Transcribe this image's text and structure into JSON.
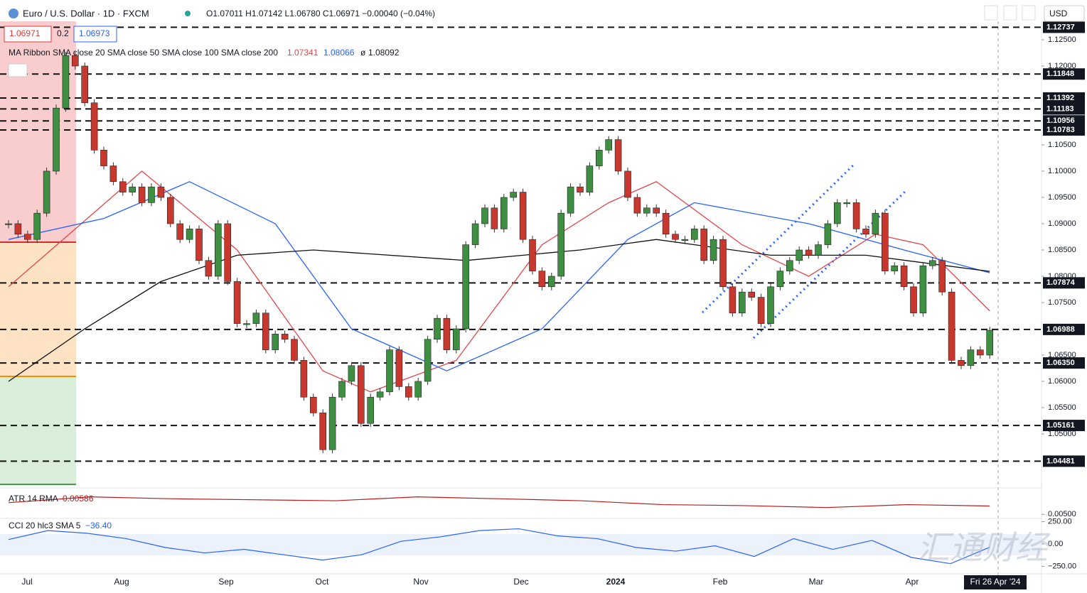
{
  "header": {
    "title": "Euro / U.S. Dollar · 1D · FXCM",
    "ohlc": "O1.07011 H1.07142 L1.06780 C1.06971 −0.00040 (−0.04%)",
    "bid": "1.06971",
    "spread": "0.2",
    "ask": "1.06973",
    "currency": "USD",
    "ma_label": "MA Ribbon SMA close 20 SMA close 50 SMA close 100 SMA close 200",
    "ma20": "1.07341",
    "ma50": "1.08066",
    "ma100": "ø",
    "ma200": "1.08092",
    "atr_label": "ATR 14 RMA",
    "atr_value": "0.00586",
    "cci_label": "CCI 20 hlc3 SMA 5",
    "cci_value": "−36.40",
    "date_badge": "Fri 26 Apr '24",
    "watermark": "汇通财经"
  },
  "chart_data": {
    "type": "candlestick",
    "up_color": "#3f8f43",
    "down_color": "#c9382e",
    "closes": [
      1.09,
      1.088,
      1.087,
      1.092,
      1.1,
      1.112,
      1.122,
      1.12,
      1.113,
      1.104,
      1.101,
      1.098,
      1.096,
      1.097,
      1.094,
      1.097,
      1.095,
      1.09,
      1.087,
      1.089,
      1.083,
      1.08,
      1.09,
      1.079,
      1.071,
      1.071,
      1.073,
      1.066,
      1.069,
      1.068,
      1.064,
      1.057,
      1.054,
      1.047,
      1.057,
      1.06,
      1.063,
      1.052,
      1.057,
      1.058,
      1.066,
      1.059,
      1.057,
      1.06,
      1.068,
      1.072,
      1.066,
      1.07,
      1.086,
      1.09,
      1.093,
      1.089,
      1.095,
      1.096,
      1.087,
      1.081,
      1.078,
      1.08,
      1.092,
      1.097,
      1.096,
      1.101,
      1.104,
      1.106,
      1.1,
      1.095,
      1.092,
      1.093,
      1.092,
      1.088,
      1.087,
      1.087,
      1.089,
      1.083,
      1.087,
      1.078,
      1.073,
      1.077,
      1.076,
      1.071,
      1.078,
      1.081,
      1.083,
      1.085,
      1.084,
      1.086,
      1.09,
      1.094,
      1.094,
      1.089,
      1.088,
      1.092,
      1.081,
      1.082,
      1.078,
      1.073,
      1.082,
      1.083,
      1.077,
      1.064,
      1.063,
      1.066,
      1.065,
      1.06971
    ],
    "ylim": [
      1.04,
      1.12851
    ],
    "yticks": [
      {
        "value": 1.125,
        "label": "1.12500"
      },
      {
        "value": 1.12,
        "label": "1.12000"
      },
      {
        "value": 1.105,
        "label": "1.10500"
      },
      {
        "value": 1.1,
        "label": "1.10000"
      },
      {
        "value": 1.095,
        "label": "1.09500"
      },
      {
        "value": 1.09,
        "label": "1.09000"
      },
      {
        "value": 1.085,
        "label": "1.08500"
      },
      {
        "value": 1.08,
        "label": "1.08000"
      },
      {
        "value": 1.075,
        "label": "1.07500"
      },
      {
        "value": 1.065,
        "label": "1.06500"
      },
      {
        "value": 1.06,
        "label": "1.06000"
      },
      {
        "value": 1.055,
        "label": "1.05500"
      },
      {
        "value": 1.05,
        "label": "1.05000"
      }
    ],
    "levels": [
      1.12737,
      1.11848,
      1.11392,
      1.11183,
      1.10956,
      1.10783,
      1.07874,
      1.06988,
      {
        "value": 1.0635,
        "label": "1.06350"
      },
      1.05161,
      1.04481
    ],
    "x_labels": [
      "Jul",
      "Aug",
      "Sep",
      "Oct",
      "Nov",
      "Dec",
      "2024",
      "Feb",
      "Mar",
      "Apr"
    ],
    "series": [
      {
        "color": "#e0474c",
        "x": [
          0,
          14,
          24,
          33,
          38,
          47,
          56,
          63,
          68,
          77,
          84,
          91,
          96,
          103
        ],
        "values": [
          1.078,
          1.1,
          1.085,
          1.062,
          1.058,
          1.064,
          1.086,
          1.094,
          1.098,
          1.086,
          1.08,
          1.088,
          1.086,
          1.07341
        ]
      },
      {
        "color": "#2962ff",
        "x": [
          0,
          10,
          19,
          28,
          36,
          46,
          56,
          65,
          72,
          84,
          94,
          103
        ],
        "values": [
          1.087,
          1.091,
          1.098,
          1.09,
          1.07,
          1.062,
          1.07,
          1.087,
          1.094,
          1.09,
          1.085,
          1.08066
        ]
      },
      {
        "color": "#111111",
        "x": [
          0,
          8,
          16,
          24,
          32,
          48,
          60,
          68,
          80,
          90,
          103
        ],
        "values": [
          1.06,
          1.07,
          1.079,
          1.084,
          1.085,
          1.083,
          1.085,
          1.087,
          1.084,
          1.084,
          1.08092
        ]
      }
    ],
    "atr": {
      "color": "#b71c1c",
      "ylim": [
        0.0048,
        0.0075
      ],
      "yticks": [
        {
          "value": 0.005,
          "label": "0.00500"
        }
      ],
      "values": [
        0.0062,
        0.0068,
        0.0066,
        0.0065,
        0.0064,
        0.0068,
        0.0066,
        0.0064,
        0.006,
        0.0059,
        0.0057,
        0.006,
        0.00586
      ]
    },
    "cci": {
      "color": "#2962ff",
      "ylim": [
        -310,
        270
      ],
      "yticks": [
        {
          "value": 250,
          "label": "250.00"
        },
        {
          "value": 0,
          "label": "0.00"
        },
        {
          "value": -250,
          "label": "−250.00"
        }
      ],
      "values": [
        50,
        150,
        120,
        60,
        -40,
        -100,
        -60,
        -120,
        -180,
        -120,
        30,
        80,
        150,
        170,
        90,
        60,
        -40,
        -80,
        -20,
        -140,
        60,
        -60,
        40,
        -150,
        -220,
        -36.4
      ]
    }
  }
}
